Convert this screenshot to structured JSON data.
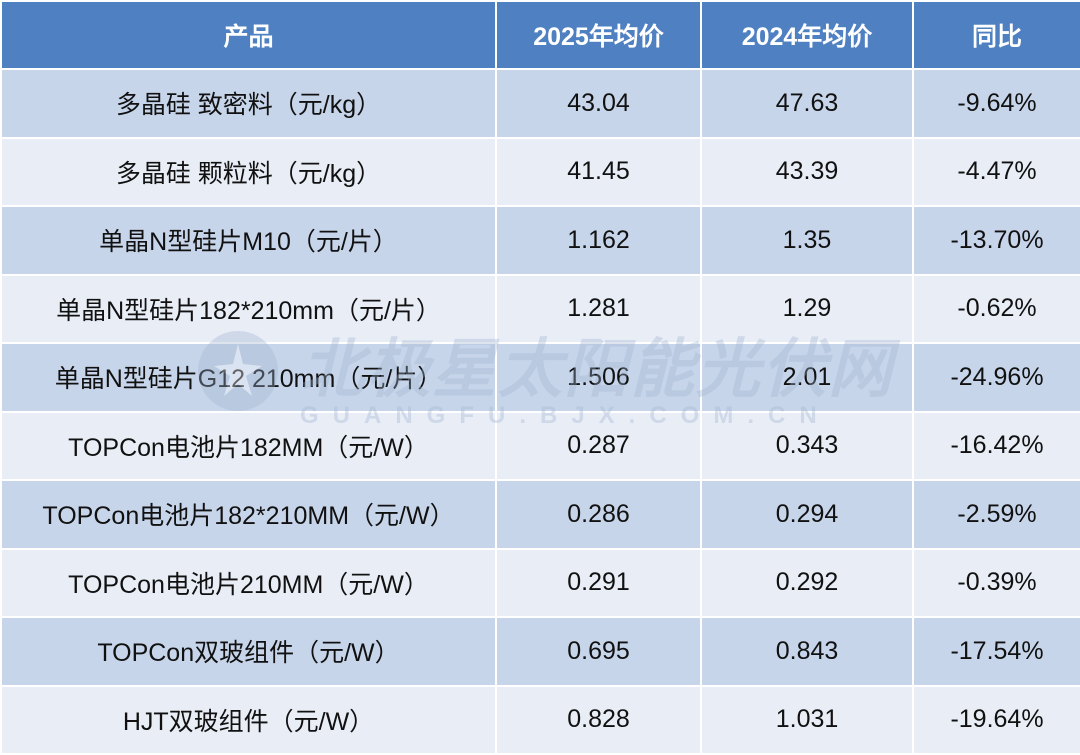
{
  "header": [
    "产品",
    "2025年均价",
    "2024年均价",
    "同比"
  ],
  "rows": [
    [
      "多晶硅 致密料（元/kg）",
      "43.04",
      "47.63",
      "-9.64%"
    ],
    [
      "多晶硅 颗粒料（元/kg）",
      "41.45",
      "43.39",
      "-4.47%"
    ],
    [
      "单晶N型硅片M10（元/片）",
      "1.162",
      "1.35",
      "-13.70%"
    ],
    [
      "单晶N型硅片182*210mm（元/片）",
      "1.281",
      "1.29",
      "-0.62%"
    ],
    [
      "单晶N型硅片G12 210mm（元/片）",
      "1.506",
      "2.01",
      "-24.96%"
    ],
    [
      "TOPCon电池片182MM（元/W）",
      "0.287",
      "0.343",
      "-16.42%"
    ],
    [
      "TOPCon电池片182*210MM（元/W）",
      "0.286",
      "0.294",
      "-2.59%"
    ],
    [
      "TOPCon电池片210MM（元/W）",
      "0.291",
      "0.292",
      "-0.39%"
    ],
    [
      "TOPCon双玻组件（元/W）",
      "0.695",
      "0.843",
      "-17.54%"
    ],
    [
      "HJT双玻组件（元/W）",
      "0.828",
      "1.031",
      "-19.64%"
    ]
  ],
  "watermark": {
    "title": "北极星太阳能光伏网",
    "url": "GUANGFU.BJX.COM.CN"
  }
}
